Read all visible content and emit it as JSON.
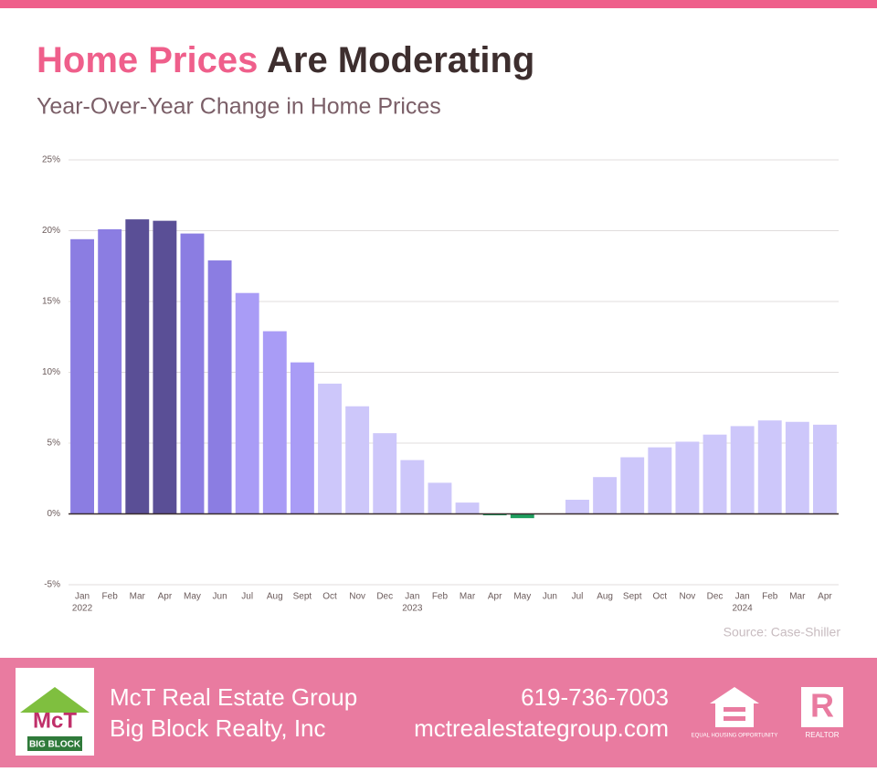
{
  "chart_data": {
    "type": "bar",
    "title_parts": [
      {
        "text": "Home Prices",
        "color": "#ef5f8b"
      },
      {
        "text": "Are Moderating",
        "color": "#3d2e2e"
      }
    ],
    "subtitle": "Year-Over-Year Change in Home Prices",
    "source": "Source: Case-Shiller",
    "categories": [
      "Jan",
      "Feb",
      "Mar",
      "Apr",
      "May",
      "Jun",
      "Jul",
      "Aug",
      "Sept",
      "Oct",
      "Nov",
      "Dec",
      "Jan",
      "Feb",
      "Mar",
      "Apr",
      "May",
      "Jun",
      "Jul",
      "Aug",
      "Sept",
      "Oct",
      "Nov",
      "Dec",
      "Jan",
      "Feb",
      "Mar",
      "Apr"
    ],
    "years": [
      "2022",
      null,
      null,
      null,
      null,
      null,
      null,
      null,
      null,
      null,
      null,
      null,
      "2023",
      null,
      null,
      null,
      null,
      null,
      null,
      null,
      null,
      null,
      null,
      null,
      "2024",
      null,
      null,
      null
    ],
    "values": [
      19.4,
      20.1,
      20.8,
      20.7,
      19.8,
      17.9,
      15.6,
      12.9,
      10.7,
      9.2,
      7.6,
      5.7,
      3.8,
      2.2,
      0.8,
      -0.1,
      -0.3,
      0.0,
      1.0,
      2.6,
      4.0,
      4.7,
      5.1,
      5.6,
      6.2,
      6.6,
      6.5,
      6.3
    ],
    "colors": [
      "#8b7de2",
      "#8b7de2",
      "#5a4f96",
      "#5a4f96",
      "#8b7de2",
      "#8b7de2",
      "#a99cf6",
      "#a99cf6",
      "#a99cf6",
      "#cdc7fa",
      "#cdc7fa",
      "#cdc7fa",
      "#cdc7fa",
      "#cdc7fa",
      "#cdc7fa",
      "#1e9e5e",
      "#1e9e5e",
      "#cdc7fa",
      "#cdc7fa",
      "#cdc7fa",
      "#cdc7fa",
      "#cdc7fa",
      "#cdc7fa",
      "#cdc7fa",
      "#cdc7fa",
      "#cdc7fa",
      "#cdc7fa",
      "#cdc7fa"
    ],
    "ylim": [
      -5,
      25
    ],
    "yticks": [
      {
        "value": -5,
        "label": "-5%"
      },
      {
        "value": 0,
        "label": "0%"
      },
      {
        "value": 5,
        "label": "5%"
      },
      {
        "value": 10,
        "label": "10%"
      },
      {
        "value": 15,
        "label": "15%"
      },
      {
        "value": 20,
        "label": "20%"
      },
      {
        "value": 25,
        "label": "25%"
      }
    ],
    "grid": true
  },
  "footer": {
    "logo_text": "McT",
    "logo_subtext": "BIG BLOCK",
    "company": "McT Real Estate Group",
    "brokerage": "Big Block Realty, Inc",
    "phone": "619-736-7003",
    "website": "mctrealestategroup.com",
    "equal_housing": "EQUAL HOUSING OPPORTUNITY",
    "realtor": "REALTOR"
  }
}
